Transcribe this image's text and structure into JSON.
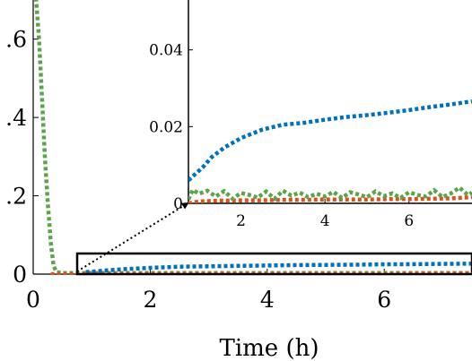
{
  "chart_data": [
    {
      "type": "line",
      "role": "main",
      "xlabel": "Time (h)",
      "ylabel": "",
      "title": "",
      "xlim": [
        0,
        7.5
      ],
      "ylim": [
        0,
        0.7
      ],
      "x_ticks": [
        0,
        2,
        4,
        6
      ],
      "x_tick_labels": [
        "0",
        "2",
        "4",
        "6"
      ],
      "y_ticks": [
        0,
        0.2,
        0.4,
        0.6
      ],
      "y_tick_labels": [
        "0",
        ".2",
        ".4",
        ".6"
      ],
      "grid": false,
      "colors": {
        "blue": "#0072BD",
        "orange": "#D95319",
        "green": "#5BA44B"
      },
      "series": [
        {
          "color": "green",
          "style": "dotted",
          "x": [
            0.0,
            0.05,
            0.1,
            0.15,
            0.2,
            0.25,
            0.3,
            0.35,
            0.4,
            0.5,
            0.7,
            1.0,
            2.0,
            3.0,
            4.0,
            5.0,
            6.0,
            7.5
          ],
          "y": [
            0.72,
            0.7,
            0.6,
            0.45,
            0.3,
            0.18,
            0.08,
            0.02,
            0.005,
            0.003,
            0.003,
            0.003,
            0.003,
            0.003,
            0.003,
            0.003,
            0.003,
            0.003
          ]
        },
        {
          "color": "orange",
          "style": "dotted",
          "x": [
            0.3,
            0.5,
            1.0,
            2.0,
            3.0,
            4.0,
            5.0,
            6.0,
            7.5
          ],
          "y": [
            0.0,
            0.0,
            0.001,
            0.001,
            0.001,
            0.001,
            0.001,
            0.001,
            0.002
          ]
        },
        {
          "color": "blue",
          "style": "dotted",
          "x": [
            0.9,
            1.2,
            1.6,
            2.0,
            2.5,
            3.0,
            3.5,
            4.0,
            4.5,
            5.0,
            5.5,
            6.0,
            6.5,
            7.0,
            7.5
          ],
          "y": [
            0.005,
            0.009,
            0.013,
            0.016,
            0.019,
            0.02,
            0.021,
            0.022,
            0.023,
            0.0235,
            0.024,
            0.025,
            0.0255,
            0.026,
            0.0268
          ]
        }
      ]
    },
    {
      "type": "line",
      "role": "inset",
      "xlim": [
        0.75,
        7.5
      ],
      "ylim": [
        0,
        0.053
      ],
      "x_ticks": [
        2,
        4,
        6
      ],
      "x_tick_labels": [
        "2",
        "4",
        "6"
      ],
      "y_ticks": [
        0,
        0.02,
        0.04
      ],
      "y_tick_labels": [
        "0",
        "0.02",
        "0.04"
      ],
      "series": [
        {
          "color": "blue",
          "style": "dotted",
          "x": [
            0.75,
            0.9,
            1.1,
            1.3,
            1.6,
            2.0,
            2.5,
            3.0,
            3.5,
            4.0,
            4.5,
            5.0,
            5.5,
            6.0,
            6.5,
            7.0,
            7.5
          ],
          "y": [
            0.006,
            0.0075,
            0.0095,
            0.012,
            0.0145,
            0.017,
            0.0192,
            0.0205,
            0.021,
            0.0218,
            0.0225,
            0.023,
            0.0236,
            0.0243,
            0.0251,
            0.0258,
            0.0266
          ]
        },
        {
          "color": "orange",
          "style": "dotted",
          "x": [
            0.75,
            1.0,
            1.5,
            2.0,
            2.5,
            3.0,
            3.5,
            4.0,
            4.5,
            5.0,
            5.5,
            6.0,
            6.5,
            7.0,
            7.5
          ],
          "y": [
            0.0,
            0.0005,
            0.0007,
            0.0008,
            0.0008,
            0.0009,
            0.0009,
            0.001,
            0.001,
            0.001,
            0.0011,
            0.0011,
            0.0012,
            0.0013,
            0.0016
          ]
        },
        {
          "color": "green",
          "style": "dotted",
          "x": [
            0.75,
            0.85,
            1.0,
            1.2,
            1.4,
            1.6,
            1.8,
            2.0,
            2.2,
            2.4,
            2.6,
            2.8,
            3.0,
            3.2,
            3.4,
            3.6,
            3.8,
            4.0,
            4.2,
            4.4,
            4.6,
            4.8,
            5.0,
            5.2,
            5.4,
            5.6,
            5.8,
            6.0,
            6.2,
            6.4,
            6.6,
            6.8,
            7.0,
            7.2,
            7.4,
            7.5
          ],
          "y": [
            0.001,
            0.0035,
            0.0025,
            0.0033,
            0.0018,
            0.0032,
            0.0012,
            0.0027,
            0.0022,
            0.0015,
            0.0031,
            0.0012,
            0.0033,
            0.002,
            0.0028,
            0.0016,
            0.0025,
            0.0018,
            0.003,
            0.0014,
            0.0029,
            0.0023,
            0.0016,
            0.0031,
            0.0019,
            0.0026,
            0.0014,
            0.0029,
            0.0022,
            0.0018,
            0.0034,
            0.0016,
            0.0026,
            0.0041,
            0.0022,
            0.0028
          ]
        }
      ]
    }
  ]
}
